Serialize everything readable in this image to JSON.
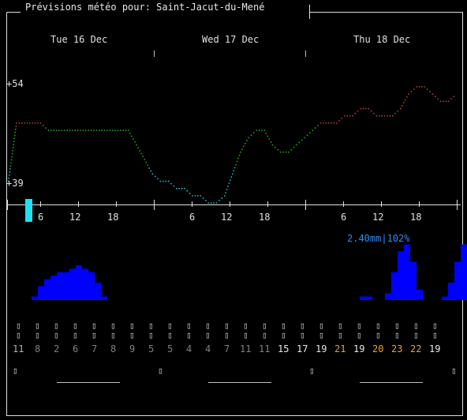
{
  "title": "Prévisions météo pour: Saint-Jacut-du-Mené",
  "days": [
    "Tue 16 Dec",
    "Wed 17 Dec",
    "Thu 18 Dec"
  ],
  "y_axis": {
    "max_label": "+54",
    "min_label": "+39"
  },
  "hour_ticks": [
    "6",
    "12",
    "18",
    "6",
    "12",
    "18",
    "6",
    "12",
    "18"
  ],
  "precip_summary": "2.40mm|102%",
  "colors": {
    "cold": "#20c8e0",
    "cool": "#20b020",
    "warm": "#c04040",
    "precip": "#0000ff",
    "hot_text": "#f0a020"
  },
  "chart_data": {
    "type": "line",
    "title": "",
    "ylim": [
      39,
      54
    ],
    "temperature": [
      40,
      48,
      48,
      48,
      48,
      47,
      47,
      47,
      47,
      47,
      47,
      47,
      47,
      47,
      47,
      47,
      45,
      43,
      41,
      40,
      40,
      39,
      39,
      38,
      38,
      37,
      37,
      38,
      41,
      44,
      46,
      47,
      47,
      45,
      44,
      44,
      45,
      46,
      47,
      48,
      48,
      48,
      49,
      49,
      50,
      50,
      49,
      49,
      49,
      50,
      52,
      53,
      53,
      52,
      51,
      51,
      52
    ],
    "precipitation_bars": [
      1,
      4,
      6,
      7,
      8,
      8,
      9,
      10,
      9,
      8,
      5,
      1,
      0,
      0,
      0,
      0,
      0,
      0,
      0,
      0,
      0,
      0,
      0,
      0,
      0,
      0,
      0,
      0,
      0,
      0,
      0,
      0,
      0,
      0,
      0,
      0,
      0,
      0,
      0,
      0,
      0,
      0,
      0,
      0,
      0,
      0,
      0,
      0,
      0,
      0,
      0,
      0,
      1,
      1,
      0,
      0,
      2,
      8,
      14,
      16,
      11,
      3,
      0,
      0,
      0,
      1,
      5,
      11,
      16,
      16,
      13,
      5
    ]
  },
  "temps": [
    {
      "v": "11",
      "c": "#b0b0b0"
    },
    {
      "v": "8",
      "c": "#808080"
    },
    {
      "v": "2",
      "c": "#808080"
    },
    {
      "v": "6",
      "c": "#808080"
    },
    {
      "v": "7",
      "c": "#808080"
    },
    {
      "v": "8",
      "c": "#808080"
    },
    {
      "v": "9",
      "c": "#808080"
    },
    {
      "v": "5",
      "c": "#808080"
    },
    {
      "v": "5",
      "c": "#808080"
    },
    {
      "v": "4",
      "c": "#808080"
    },
    {
      "v": "4",
      "c": "#808080"
    },
    {
      "v": "7",
      "c": "#808080"
    },
    {
      "v": "11",
      "c": "#808080"
    },
    {
      "v": "11",
      "c": "#808080"
    },
    {
      "v": "15",
      "c": "#e8e8e8"
    },
    {
      "v": "17",
      "c": "#e8e8e8"
    },
    {
      "v": "19",
      "c": "#e8e8e8"
    },
    {
      "v": "21",
      "c": "#f0a020"
    },
    {
      "v": "19",
      "c": "#e8e8e8"
    },
    {
      "v": "20",
      "c": "#f0a020"
    },
    {
      "v": "23",
      "c": "#f0a020"
    },
    {
      "v": "22",
      "c": "#f0a020"
    },
    {
      "v": "19",
      "c": "#e8e8e8"
    }
  ]
}
